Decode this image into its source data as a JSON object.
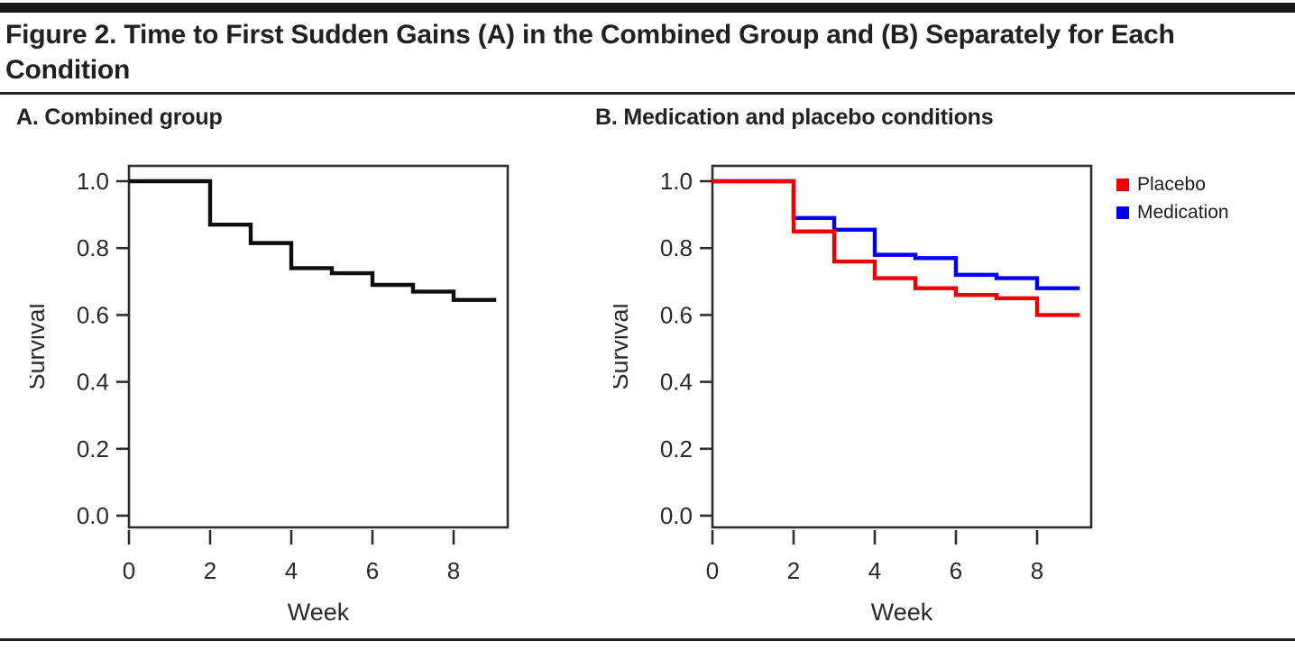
{
  "header": {
    "title": "Figure 2. Time to First Sudden Gains (A) in the Combined Group and (B) Separately for Each Condition"
  },
  "chart_data": [
    {
      "type": "line",
      "subtype": "kaplan-meier-step",
      "panel_label": "A. Combined group",
      "xlabel": "Week",
      "ylabel": "Survival",
      "xlim": [
        0,
        9.3
      ],
      "ylim": [
        0,
        1.05
      ],
      "xticks": [
        0,
        2,
        4,
        6,
        8
      ],
      "ytick_labels": [
        "0.0",
        "0.2",
        "0.4",
        "0.6",
        "0.8",
        "1.0"
      ],
      "grid": false,
      "legend": null,
      "series": [
        {
          "name": "Combined group",
          "color": "#0d0d0d",
          "steps": [
            [
              0,
              1.0
            ],
            [
              2,
              0.87
            ],
            [
              3,
              0.815
            ],
            [
              4,
              0.74
            ],
            [
              5,
              0.725
            ],
            [
              6,
              0.69
            ],
            [
              7,
              0.67
            ],
            [
              8,
              0.645
            ]
          ],
          "end_x": 9.05
        }
      ]
    },
    {
      "type": "line",
      "subtype": "kaplan-meier-step",
      "panel_label": "B. Medication and placebo conditions",
      "xlabel": "Week",
      "ylabel": "Survival",
      "xlim": [
        0,
        9.3
      ],
      "ylim": [
        0,
        1.05
      ],
      "xticks": [
        0,
        2,
        4,
        6,
        8
      ],
      "ytick_labels": [
        "0.0",
        "0.2",
        "0.4",
        "0.6",
        "0.8",
        "1.0"
      ],
      "grid": false,
      "legend": {
        "position": "right-of-plot-top",
        "entries": [
          {
            "label": "Placebo",
            "color": "#ee0000"
          },
          {
            "label": "Medication",
            "color": "#0000ee"
          }
        ]
      },
      "series": [
        {
          "name": "Medication",
          "color": "#0000ee",
          "steps": [
            [
              0,
              1.0
            ],
            [
              2,
              0.89
            ],
            [
              3,
              0.855
            ],
            [
              4,
              0.78
            ],
            [
              5,
              0.77
            ],
            [
              6,
              0.72
            ],
            [
              7,
              0.71
            ],
            [
              8,
              0.68
            ]
          ],
          "end_x": 9.05
        },
        {
          "name": "Placebo",
          "color": "#ee0000",
          "steps": [
            [
              0,
              1.0
            ],
            [
              2,
              0.85
            ],
            [
              3,
              0.76
            ],
            [
              4,
              0.71
            ],
            [
              5,
              0.68
            ],
            [
              6,
              0.66
            ],
            [
              7,
              0.65
            ],
            [
              8,
              0.6
            ]
          ],
          "end_x": 9.05
        }
      ]
    }
  ]
}
